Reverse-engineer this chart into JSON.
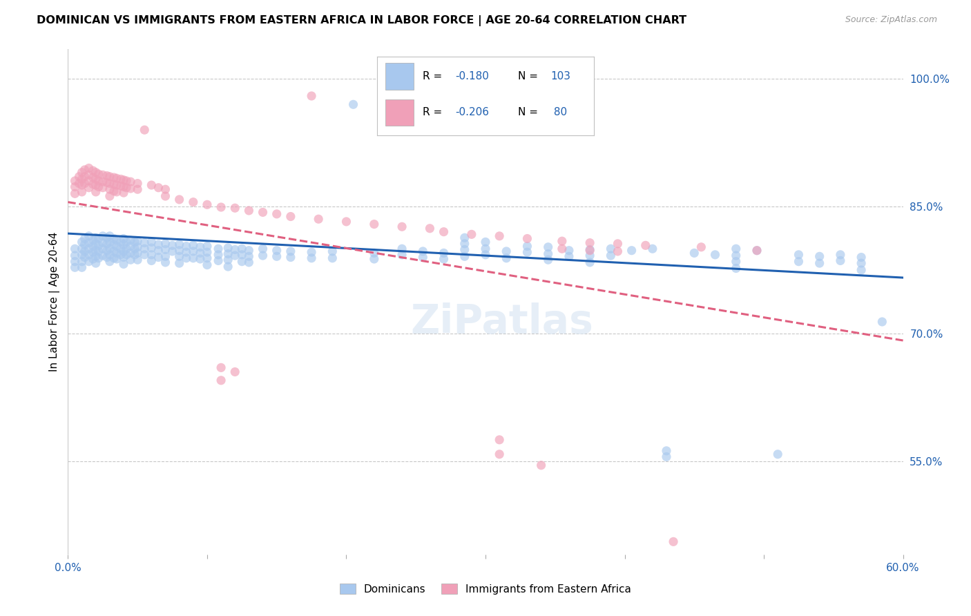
{
  "title": "DOMINICAN VS IMMIGRANTS FROM EASTERN AFRICA IN LABOR FORCE | AGE 20-64 CORRELATION CHART",
  "source": "Source: ZipAtlas.com",
  "ylabel": "In Labor Force | Age 20-64",
  "xlim": [
    0.0,
    0.6
  ],
  "ylim": [
    0.44,
    1.035
  ],
  "yticks_right": [
    0.55,
    0.7,
    0.85,
    1.0
  ],
  "ytick_right_labels": [
    "55.0%",
    "70.0%",
    "85.0%",
    "100.0%"
  ],
  "blue_color": "#a8c8ee",
  "pink_color": "#f0a0b8",
  "blue_line_color": "#2060b0",
  "pink_line_color": "#e06080",
  "blue_trend_x": [
    0.0,
    0.6
  ],
  "blue_trend_y": [
    0.818,
    0.766
  ],
  "pink_trend_x": [
    0.0,
    0.6
  ],
  "pink_trend_y": [
    0.855,
    0.692
  ],
  "watermark": "ZiPatlas",
  "blue_dots": [
    [
      0.005,
      0.8
    ],
    [
      0.005,
      0.792
    ],
    [
      0.005,
      0.785
    ],
    [
      0.005,
      0.778
    ],
    [
      0.01,
      0.808
    ],
    [
      0.01,
      0.8
    ],
    [
      0.01,
      0.793
    ],
    [
      0.01,
      0.785
    ],
    [
      0.01,
      0.778
    ],
    [
      0.012,
      0.812
    ],
    [
      0.012,
      0.805
    ],
    [
      0.012,
      0.797
    ],
    [
      0.012,
      0.79
    ],
    [
      0.015,
      0.815
    ],
    [
      0.015,
      0.807
    ],
    [
      0.015,
      0.8
    ],
    [
      0.015,
      0.793
    ],
    [
      0.015,
      0.785
    ],
    [
      0.018,
      0.81
    ],
    [
      0.018,
      0.803
    ],
    [
      0.018,
      0.796
    ],
    [
      0.018,
      0.788
    ],
    [
      0.02,
      0.813
    ],
    [
      0.02,
      0.806
    ],
    [
      0.02,
      0.798
    ],
    [
      0.02,
      0.791
    ],
    [
      0.02,
      0.783
    ],
    [
      0.022,
      0.812
    ],
    [
      0.022,
      0.804
    ],
    [
      0.022,
      0.797
    ],
    [
      0.022,
      0.789
    ],
    [
      0.025,
      0.815
    ],
    [
      0.025,
      0.807
    ],
    [
      0.025,
      0.8
    ],
    [
      0.025,
      0.792
    ],
    [
      0.028,
      0.813
    ],
    [
      0.028,
      0.806
    ],
    [
      0.028,
      0.798
    ],
    [
      0.028,
      0.79
    ],
    [
      0.03,
      0.815
    ],
    [
      0.03,
      0.808
    ],
    [
      0.03,
      0.8
    ],
    [
      0.03,
      0.793
    ],
    [
      0.03,
      0.785
    ],
    [
      0.033,
      0.812
    ],
    [
      0.033,
      0.805
    ],
    [
      0.033,
      0.797
    ],
    [
      0.033,
      0.789
    ],
    [
      0.035,
      0.81
    ],
    [
      0.035,
      0.803
    ],
    [
      0.035,
      0.795
    ],
    [
      0.035,
      0.788
    ],
    [
      0.038,
      0.808
    ],
    [
      0.038,
      0.8
    ],
    [
      0.038,
      0.793
    ],
    [
      0.04,
      0.812
    ],
    [
      0.04,
      0.805
    ],
    [
      0.04,
      0.797
    ],
    [
      0.04,
      0.79
    ],
    [
      0.04,
      0.782
    ],
    [
      0.042,
      0.808
    ],
    [
      0.042,
      0.8
    ],
    [
      0.042,
      0.793
    ],
    [
      0.045,
      0.81
    ],
    [
      0.045,
      0.803
    ],
    [
      0.045,
      0.795
    ],
    [
      0.045,
      0.787
    ],
    [
      0.048,
      0.808
    ],
    [
      0.048,
      0.8
    ],
    [
      0.048,
      0.793
    ],
    [
      0.05,
      0.809
    ],
    [
      0.05,
      0.802
    ],
    [
      0.05,
      0.795
    ],
    [
      0.05,
      0.787
    ],
    [
      0.055,
      0.807
    ],
    [
      0.055,
      0.8
    ],
    [
      0.055,
      0.793
    ],
    [
      0.06,
      0.808
    ],
    [
      0.06,
      0.801
    ],
    [
      0.06,
      0.793
    ],
    [
      0.06,
      0.786
    ],
    [
      0.065,
      0.805
    ],
    [
      0.065,
      0.798
    ],
    [
      0.065,
      0.79
    ],
    [
      0.07,
      0.806
    ],
    [
      0.07,
      0.799
    ],
    [
      0.07,
      0.791
    ],
    [
      0.07,
      0.784
    ],
    [
      0.075,
      0.804
    ],
    [
      0.075,
      0.797
    ],
    [
      0.08,
      0.805
    ],
    [
      0.08,
      0.798
    ],
    [
      0.08,
      0.791
    ],
    [
      0.08,
      0.783
    ],
    [
      0.085,
      0.803
    ],
    [
      0.085,
      0.796
    ],
    [
      0.085,
      0.789
    ],
    [
      0.09,
      0.804
    ],
    [
      0.09,
      0.797
    ],
    [
      0.09,
      0.789
    ],
    [
      0.095,
      0.802
    ],
    [
      0.095,
      0.795
    ],
    [
      0.095,
      0.788
    ],
    [
      0.1,
      0.803
    ],
    [
      0.1,
      0.796
    ],
    [
      0.1,
      0.789
    ],
    [
      0.1,
      0.781
    ],
    [
      0.108,
      0.8
    ],
    [
      0.108,
      0.793
    ],
    [
      0.108,
      0.786
    ],
    [
      0.115,
      0.801
    ],
    [
      0.115,
      0.794
    ],
    [
      0.115,
      0.787
    ],
    [
      0.115,
      0.779
    ],
    [
      0.12,
      0.799
    ],
    [
      0.12,
      0.792
    ],
    [
      0.125,
      0.8
    ],
    [
      0.125,
      0.793
    ],
    [
      0.125,
      0.785
    ],
    [
      0.13,
      0.798
    ],
    [
      0.13,
      0.791
    ],
    [
      0.13,
      0.784
    ],
    [
      0.14,
      0.8
    ],
    [
      0.14,
      0.792
    ],
    [
      0.15,
      0.798
    ],
    [
      0.15,
      0.791
    ],
    [
      0.16,
      0.797
    ],
    [
      0.16,
      0.79
    ],
    [
      0.175,
      0.796
    ],
    [
      0.175,
      0.789
    ],
    [
      0.19,
      0.797
    ],
    [
      0.19,
      0.789
    ],
    [
      0.205,
      0.97
    ],
    [
      0.22,
      0.795
    ],
    [
      0.22,
      0.788
    ],
    [
      0.24,
      0.8
    ],
    [
      0.24,
      0.793
    ],
    [
      0.255,
      0.797
    ],
    [
      0.255,
      0.79
    ],
    [
      0.27,
      0.795
    ],
    [
      0.27,
      0.788
    ],
    [
      0.285,
      0.813
    ],
    [
      0.285,
      0.806
    ],
    [
      0.285,
      0.799
    ],
    [
      0.285,
      0.791
    ],
    [
      0.3,
      0.808
    ],
    [
      0.3,
      0.8
    ],
    [
      0.3,
      0.793
    ],
    [
      0.315,
      0.797
    ],
    [
      0.315,
      0.789
    ],
    [
      0.33,
      0.803
    ],
    [
      0.33,
      0.796
    ],
    [
      0.345,
      0.802
    ],
    [
      0.345,
      0.794
    ],
    [
      0.345,
      0.787
    ],
    [
      0.36,
      0.798
    ],
    [
      0.36,
      0.791
    ],
    [
      0.375,
      0.799
    ],
    [
      0.375,
      0.792
    ],
    [
      0.375,
      0.784
    ],
    [
      0.39,
      0.8
    ],
    [
      0.39,
      0.792
    ],
    [
      0.405,
      0.798
    ],
    [
      0.42,
      0.8
    ],
    [
      0.43,
      0.562
    ],
    [
      0.43,
      0.555
    ],
    [
      0.45,
      0.795
    ],
    [
      0.465,
      0.793
    ],
    [
      0.48,
      0.8
    ],
    [
      0.48,
      0.792
    ],
    [
      0.48,
      0.785
    ],
    [
      0.48,
      0.777
    ],
    [
      0.495,
      0.798
    ],
    [
      0.51,
      0.558
    ],
    [
      0.525,
      0.793
    ],
    [
      0.525,
      0.785
    ],
    [
      0.54,
      0.791
    ],
    [
      0.54,
      0.783
    ],
    [
      0.555,
      0.793
    ],
    [
      0.555,
      0.786
    ],
    [
      0.57,
      0.79
    ],
    [
      0.57,
      0.783
    ],
    [
      0.57,
      0.775
    ],
    [
      0.585,
      0.714
    ]
  ],
  "pink_dots": [
    [
      0.005,
      0.88
    ],
    [
      0.005,
      0.873
    ],
    [
      0.005,
      0.865
    ],
    [
      0.008,
      0.885
    ],
    [
      0.008,
      0.877
    ],
    [
      0.01,
      0.89
    ],
    [
      0.01,
      0.882
    ],
    [
      0.01,
      0.875
    ],
    [
      0.01,
      0.867
    ],
    [
      0.012,
      0.893
    ],
    [
      0.012,
      0.885
    ],
    [
      0.012,
      0.877
    ],
    [
      0.015,
      0.895
    ],
    [
      0.015,
      0.887
    ],
    [
      0.015,
      0.88
    ],
    [
      0.015,
      0.872
    ],
    [
      0.018,
      0.892
    ],
    [
      0.018,
      0.884
    ],
    [
      0.018,
      0.876
    ],
    [
      0.02,
      0.89
    ],
    [
      0.02,
      0.882
    ],
    [
      0.02,
      0.875
    ],
    [
      0.02,
      0.867
    ],
    [
      0.022,
      0.888
    ],
    [
      0.022,
      0.88
    ],
    [
      0.022,
      0.873
    ],
    [
      0.025,
      0.887
    ],
    [
      0.025,
      0.879
    ],
    [
      0.025,
      0.872
    ],
    [
      0.028,
      0.886
    ],
    [
      0.028,
      0.878
    ],
    [
      0.03,
      0.885
    ],
    [
      0.03,
      0.877
    ],
    [
      0.03,
      0.87
    ],
    [
      0.03,
      0.862
    ],
    [
      0.033,
      0.884
    ],
    [
      0.033,
      0.876
    ],
    [
      0.033,
      0.868
    ],
    [
      0.035,
      0.883
    ],
    [
      0.035,
      0.875
    ],
    [
      0.035,
      0.867
    ],
    [
      0.038,
      0.882
    ],
    [
      0.038,
      0.874
    ],
    [
      0.04,
      0.881
    ],
    [
      0.04,
      0.873
    ],
    [
      0.04,
      0.866
    ],
    [
      0.042,
      0.88
    ],
    [
      0.042,
      0.872
    ],
    [
      0.045,
      0.879
    ],
    [
      0.045,
      0.871
    ],
    [
      0.05,
      0.877
    ],
    [
      0.05,
      0.87
    ],
    [
      0.055,
      0.94
    ],
    [
      0.06,
      0.875
    ],
    [
      0.065,
      0.872
    ],
    [
      0.07,
      0.87
    ],
    [
      0.07,
      0.862
    ],
    [
      0.08,
      0.858
    ],
    [
      0.09,
      0.855
    ],
    [
      0.1,
      0.852
    ],
    [
      0.11,
      0.849
    ],
    [
      0.11,
      0.66
    ],
    [
      0.11,
      0.645
    ],
    [
      0.12,
      0.848
    ],
    [
      0.12,
      0.655
    ],
    [
      0.13,
      0.845
    ],
    [
      0.14,
      0.843
    ],
    [
      0.15,
      0.841
    ],
    [
      0.16,
      0.838
    ],
    [
      0.18,
      0.835
    ],
    [
      0.2,
      0.832
    ],
    [
      0.22,
      0.829
    ],
    [
      0.24,
      0.826
    ],
    [
      0.26,
      0.824
    ],
    [
      0.175,
      0.98
    ],
    [
      0.27,
      0.82
    ],
    [
      0.29,
      0.817
    ],
    [
      0.31,
      0.815
    ],
    [
      0.33,
      0.812
    ],
    [
      0.31,
      0.575
    ],
    [
      0.31,
      0.558
    ],
    [
      0.34,
      0.545
    ],
    [
      0.355,
      0.809
    ],
    [
      0.355,
      0.8
    ],
    [
      0.375,
      0.807
    ],
    [
      0.375,
      0.798
    ],
    [
      0.395,
      0.806
    ],
    [
      0.395,
      0.797
    ],
    [
      0.415,
      0.804
    ],
    [
      0.435,
      0.455
    ],
    [
      0.455,
      0.802
    ],
    [
      0.495,
      0.798
    ]
  ]
}
